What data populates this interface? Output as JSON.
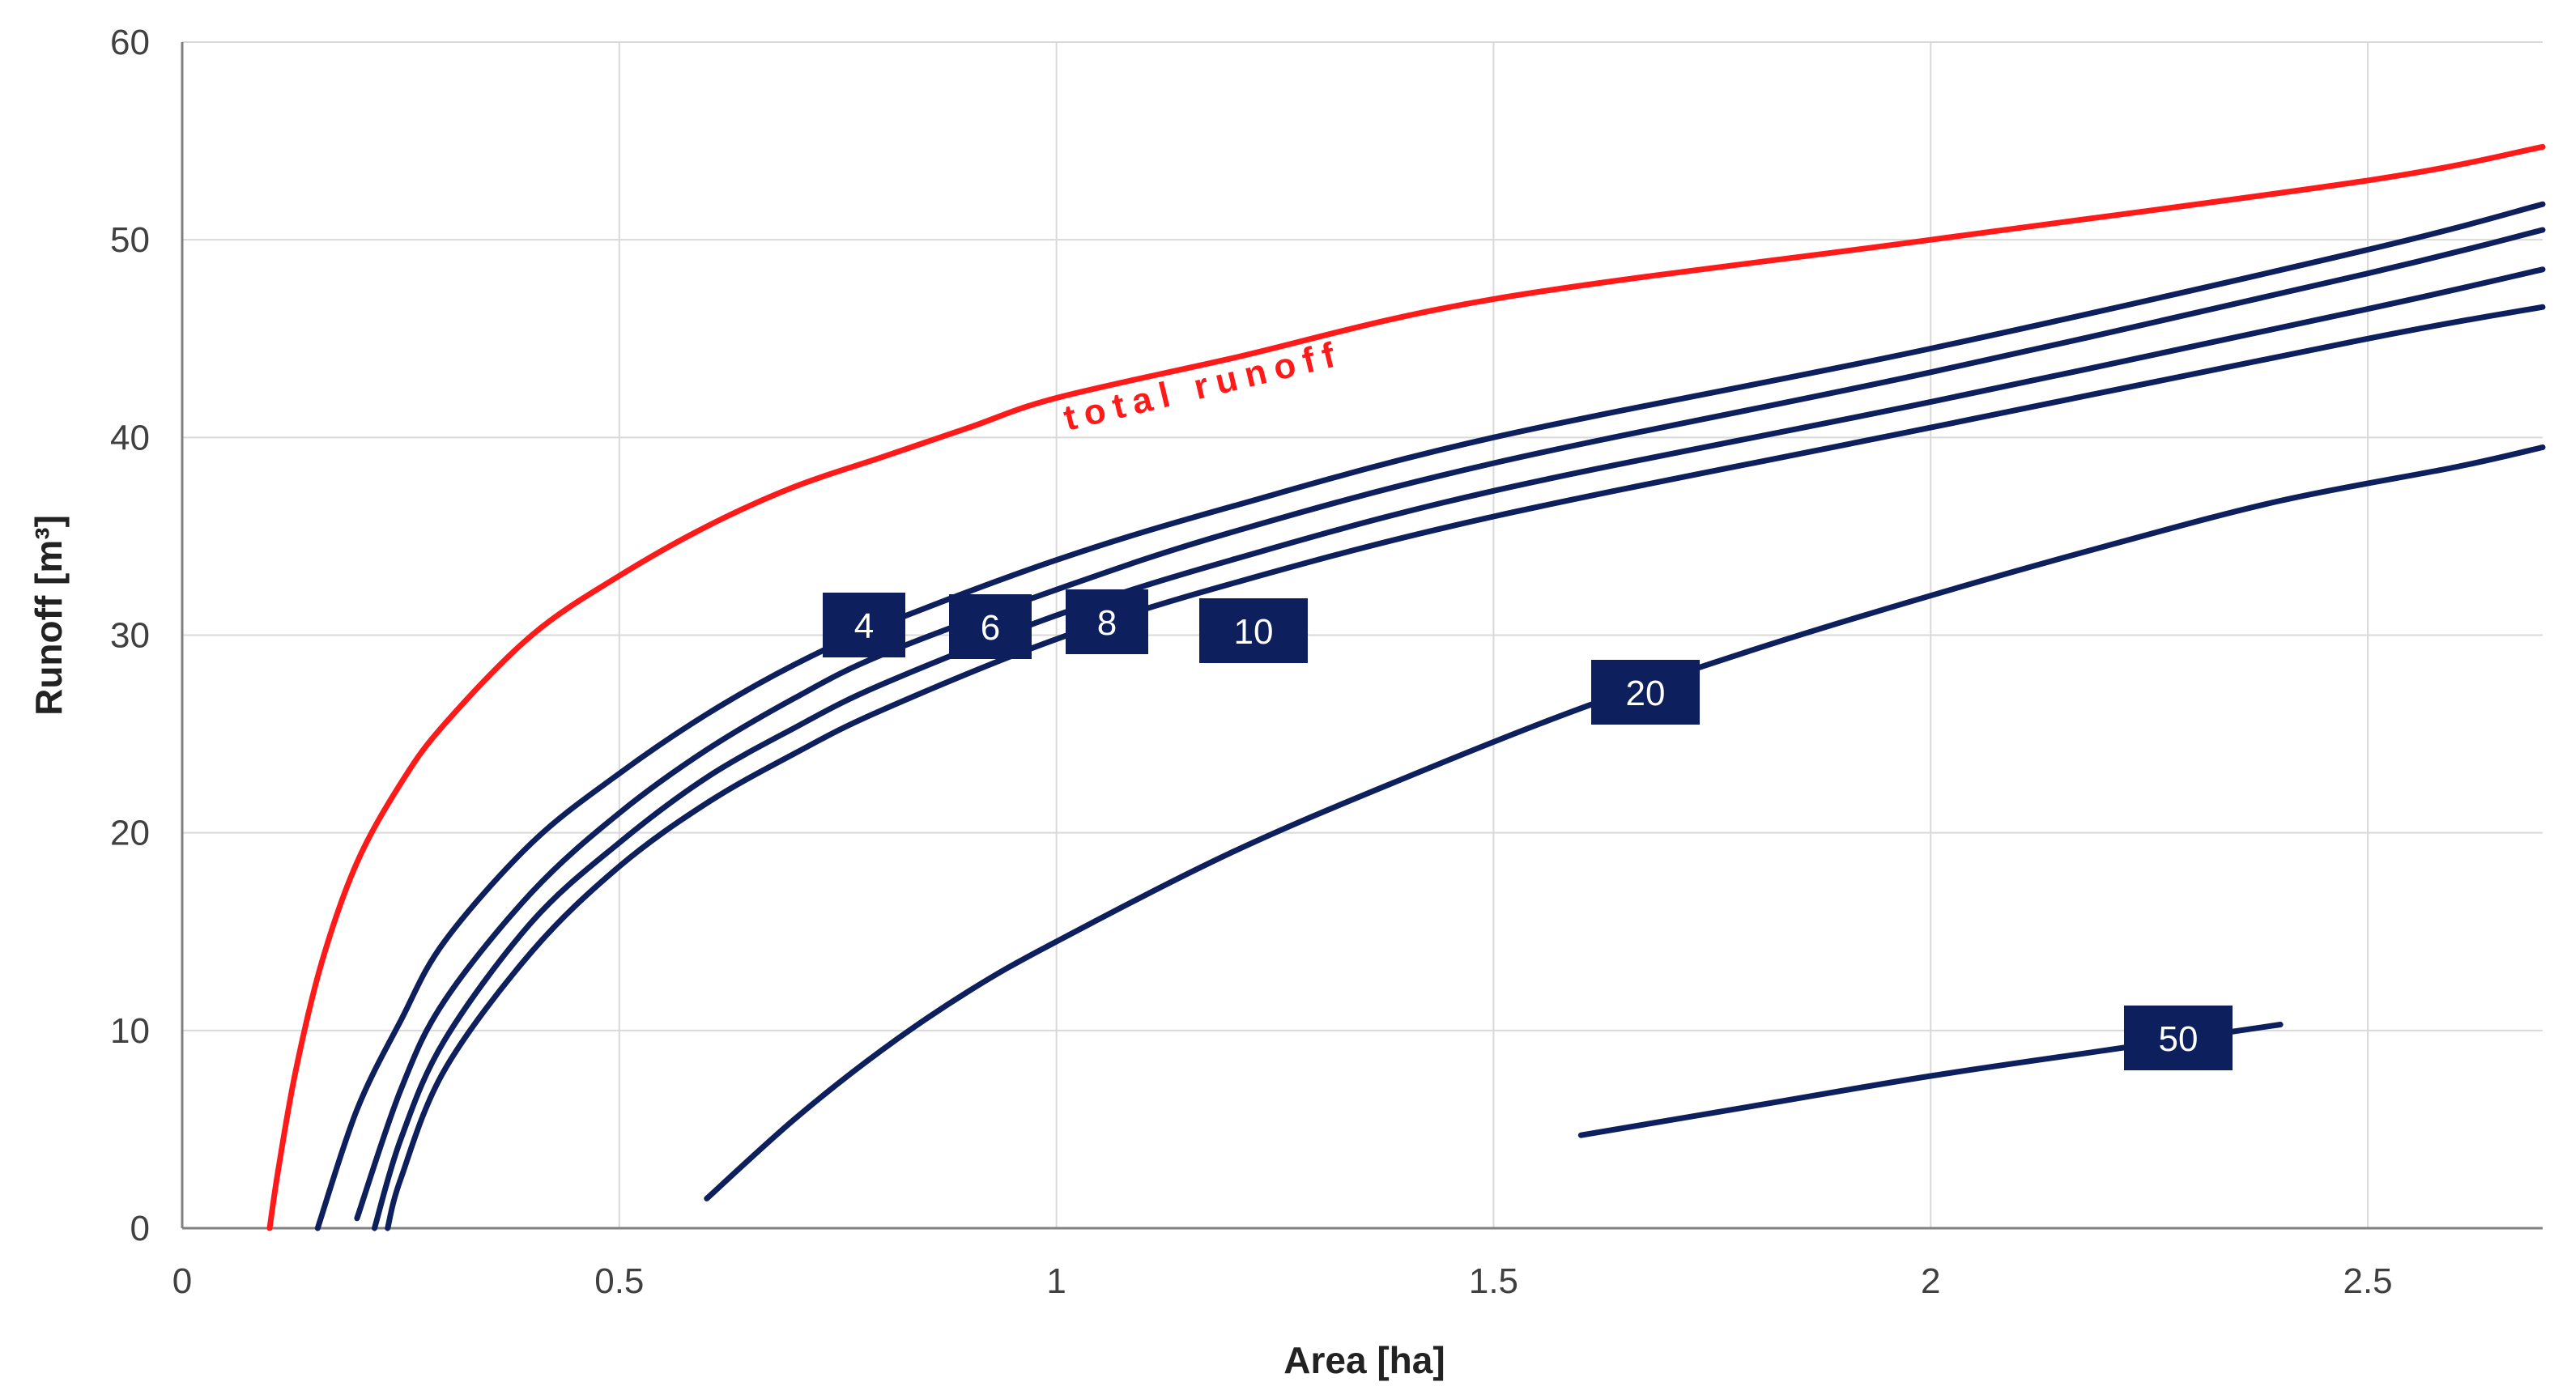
{
  "chart_data": {
    "type": "line",
    "xlabel": "Area [ha]",
    "ylabel": "Runoff [m³]",
    "xlim": [
      0,
      2.7
    ],
    "ylim": [
      0,
      60
    ],
    "xticks": [
      0,
      0.5,
      1,
      1.5,
      2,
      2.5
    ],
    "xtick_labels": [
      "0",
      "0.5",
      "1",
      "1.5",
      "2",
      "2.5"
    ],
    "yticks": [
      0,
      10,
      20,
      30,
      40,
      50,
      60
    ],
    "ytick_labels": [
      "0",
      "10",
      "20",
      "30",
      "40",
      "50",
      "60"
    ],
    "grid": true,
    "series": [
      {
        "name": "total runoff",
        "label": "total runoff",
        "color": "#ff1a1a",
        "x": [
          0.1,
          0.11,
          0.13,
          0.16,
          0.2,
          0.25,
          0.3,
          0.4,
          0.5,
          0.6,
          0.7,
          0.8,
          0.9,
          1.0,
          1.2,
          1.5,
          2.0,
          2.5,
          2.7
        ],
        "y": [
          0,
          3.0,
          8.0,
          13.5,
          18.5,
          22.5,
          25.5,
          30.0,
          33.0,
          35.5,
          37.5,
          39.0,
          40.5,
          42.0,
          44.0,
          47.0,
          50.0,
          53.0,
          54.7
        ]
      },
      {
        "name": "4",
        "label": "4",
        "color": "#0d1f5c",
        "x": [
          0.155,
          0.2,
          0.25,
          0.3,
          0.4,
          0.5,
          0.6,
          0.7,
          0.8,
          1.0,
          1.2,
          1.5,
          2.0,
          2.5,
          2.7
        ],
        "y": [
          0,
          6.0,
          10.5,
          14.5,
          19.5,
          23.0,
          26.0,
          28.5,
          30.5,
          33.8,
          36.5,
          40.0,
          44.5,
          49.5,
          51.8
        ]
      },
      {
        "name": "6",
        "label": "6",
        "color": "#0d1f5c",
        "x": [
          0.2,
          0.25,
          0.3,
          0.4,
          0.5,
          0.6,
          0.7,
          0.8,
          1.0,
          1.2,
          1.5,
          2.0,
          2.5,
          2.7
        ],
        "y": [
          0.5,
          7.0,
          11.5,
          17.0,
          21.0,
          24.2,
          26.8,
          29.0,
          32.3,
          35.2,
          38.7,
          43.3,
          48.3,
          50.5
        ]
      },
      {
        "name": "8",
        "label": "8",
        "color": "#0d1f5c",
        "x": [
          0.22,
          0.25,
          0.3,
          0.4,
          0.5,
          0.6,
          0.7,
          0.8,
          1.0,
          1.2,
          1.5,
          2.0,
          2.5,
          2.7
        ],
        "y": [
          0,
          4.5,
          9.5,
          15.5,
          19.5,
          22.8,
          25.3,
          27.5,
          31.0,
          33.8,
          37.3,
          41.8,
          46.5,
          48.5
        ]
      },
      {
        "name": "10",
        "label": "10",
        "color": "#0d1f5c",
        "x": [
          0.235,
          0.25,
          0.3,
          0.4,
          0.5,
          0.6,
          0.7,
          0.8,
          1.0,
          1.2,
          1.5,
          2.0,
          2.5,
          2.7
        ],
        "y": [
          0,
          2.5,
          8.0,
          14.0,
          18.3,
          21.5,
          24.0,
          26.2,
          29.8,
          32.6,
          36.0,
          40.5,
          45.0,
          46.6
        ]
      },
      {
        "name": "20",
        "label": "20",
        "color": "#0d1f5c",
        "x": [
          0.6,
          0.7,
          0.8,
          0.9,
          1.0,
          1.2,
          1.4,
          1.6,
          1.8,
          2.0,
          2.2,
          2.4,
          2.6,
          2.7
        ],
        "y": [
          1.5,
          5.5,
          9.0,
          12.0,
          14.5,
          19.0,
          22.8,
          26.3,
          29.3,
          32.0,
          34.5,
          36.8,
          38.5,
          39.5
        ]
      },
      {
        "name": "50",
        "label": "50",
        "color": "#0d1f5c",
        "x": [
          1.6,
          1.8,
          2.0,
          2.2,
          2.4
        ],
        "y": [
          4.7,
          6.2,
          7.7,
          9.0,
          10.3
        ]
      }
    ]
  }
}
